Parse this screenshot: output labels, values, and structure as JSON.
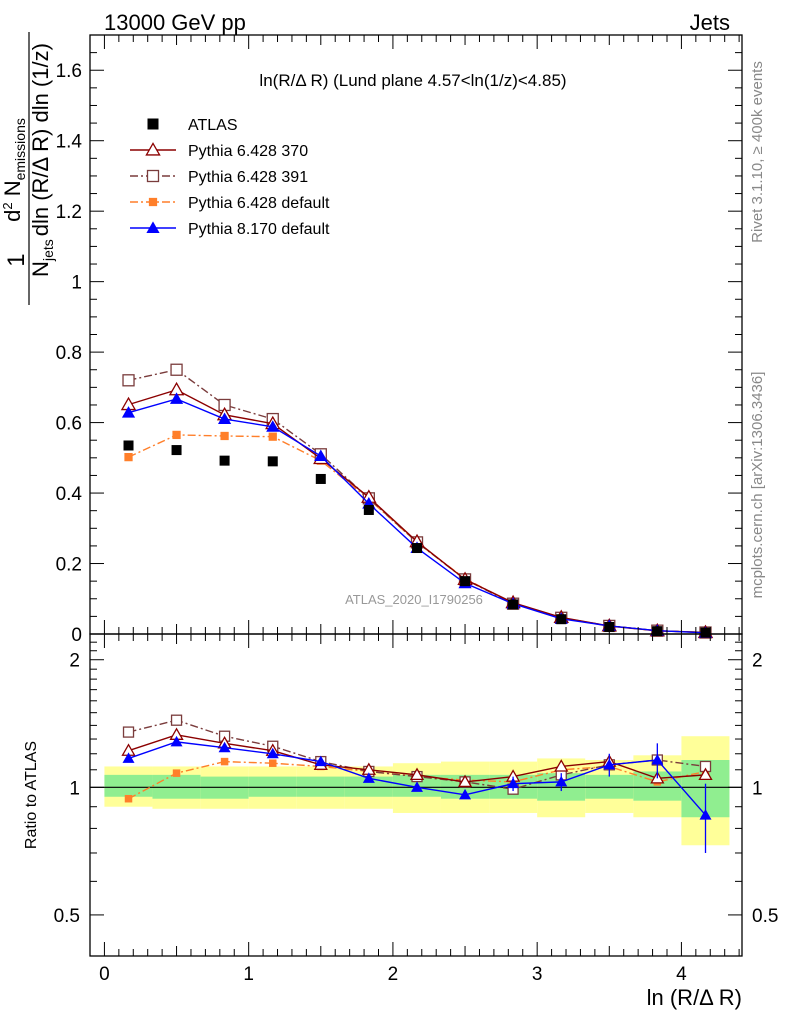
{
  "header": {
    "left": "13000 GeV pp",
    "right": "Jets"
  },
  "side_labels": {
    "upper": "Rivet 3.1.10, ≥ 400k events",
    "lower": "mcplots.cern.ch [arXiv:1306.3436]"
  },
  "analysis_id": "ATLAS_2020_I1790256",
  "chart_data": {
    "type": "scatter",
    "title": "ln(R/Δ R) (Lund plane 4.57<ln(1/z)<4.85)",
    "xlabel": "ln (R/Δ R)",
    "ylabel": "1/N_jets dN_emissions/(dln(R/Δ R) dln(1/z))",
    "ylabel_parts": {
      "numerator": "1",
      "denominator": "N",
      "denominator_sub": "jets",
      "d2": "d",
      "sup2": "2",
      "n": " N",
      "n_sub": "emissions",
      "rest": "dln (R/Δ R) dln (1/z)"
    },
    "ratio_ylabel": "Ratio to ATLAS",
    "xlim": [
      -0.1,
      4.42
    ],
    "ylim": [
      0,
      1.7
    ],
    "ratio_ylim": [
      0.4,
      2.3
    ],
    "x_ticks": [
      "0",
      "1",
      "2",
      "3",
      "4"
    ],
    "y_ticks": [
      "0",
      "0.2",
      "0.4",
      "0.6",
      "0.8",
      "1",
      "1.2",
      "1.4",
      "1.6"
    ],
    "ratio_ticks": [
      "0.5",
      "1",
      "2"
    ],
    "legend_position": "top-left",
    "x": [
      0.167,
      0.5,
      0.833,
      1.167,
      1.5,
      1.833,
      2.167,
      2.5,
      2.833,
      3.167,
      3.5,
      3.833,
      4.167
    ],
    "bin_edges": [
      0.0,
      0.333,
      0.667,
      1.0,
      1.333,
      1.667,
      2.0,
      2.333,
      2.667,
      3.0,
      3.333,
      3.667,
      4.0,
      4.333
    ],
    "series": [
      {
        "name": "ATLAS",
        "color": "#000000",
        "marker": "filled-square",
        "values": [
          0.535,
          0.522,
          0.492,
          0.49,
          0.44,
          0.352,
          0.244,
          0.15,
          0.084,
          0.042,
          0.02,
          0.008,
          0.004
        ],
        "ratio": [
          1,
          1,
          1,
          1,
          1,
          1,
          1,
          1,
          1,
          1,
          1,
          1,
          1
        ]
      },
      {
        "name": "Pythia 6.428 370",
        "color": "#8b0000",
        "marker": "open-triangle",
        "dash": "solid",
        "values": [
          0.651,
          0.693,
          0.622,
          0.597,
          0.498,
          0.388,
          0.262,
          0.155,
          0.089,
          0.047,
          0.023,
          0.009,
          0.0043
        ],
        "ratio": [
          1.22,
          1.33,
          1.27,
          1.22,
          1.13,
          1.1,
          1.07,
          1.03,
          1.06,
          1.12,
          1.15,
          1.05,
          1.07
        ]
      },
      {
        "name": "Pythia 6.428 391",
        "color": "#7a3c3c",
        "marker": "open-square",
        "dash": "dashdot",
        "values": [
          0.72,
          0.75,
          0.65,
          0.61,
          0.51,
          0.385,
          0.26,
          0.155,
          0.086,
          0.046,
          0.023,
          0.0095,
          0.0042
        ],
        "ratio": [
          1.35,
          1.44,
          1.32,
          1.25,
          1.15,
          1.09,
          1.06,
          1.03,
          0.99,
          1.07,
          1.13,
          1.16,
          1.12
        ]
      },
      {
        "name": "Pythia 6.428 default",
        "color": "#ff7f2a",
        "marker": "filled-small-square",
        "dash": "dashdot",
        "values": [
          0.502,
          0.565,
          0.562,
          0.56,
          0.492,
          0.383,
          0.26,
          0.157,
          0.087,
          0.046,
          0.022,
          0.009,
          0.0044
        ],
        "ratio": [
          0.94,
          1.08,
          1.15,
          1.14,
          1.12,
          1.09,
          1.06,
          1.04,
          1.03,
          1.1,
          1.12,
          1.03,
          1.09
        ]
      },
      {
        "name": "Pythia 8.170 default",
        "color": "#0000ff",
        "marker": "filled-triangle",
        "dash": "solid",
        "values": [
          0.628,
          0.667,
          0.61,
          0.588,
          0.505,
          0.37,
          0.244,
          0.144,
          0.086,
          0.043,
          0.023,
          0.0093,
          0.0034
        ],
        "ratio": [
          1.17,
          1.28,
          1.24,
          1.2,
          1.15,
          1.05,
          1.0,
          0.96,
          1.02,
          1.03,
          1.13,
          1.16,
          0.86
        ],
        "ratio_err": [
          0,
          0,
          0,
          0,
          0,
          0,
          0,
          0.02,
          0.04,
          0.05,
          0.07,
          0.11,
          0.16
        ]
      }
    ],
    "uncertainty_bands": {
      "inner_color": "#90ee90",
      "outer_color": "#ffff99",
      "inner_low": [
        0.95,
        0.94,
        0.94,
        0.95,
        0.95,
        0.95,
        0.95,
        0.94,
        0.94,
        0.93,
        0.94,
        0.93,
        0.85
      ],
      "inner_high": [
        1.07,
        1.07,
        1.06,
        1.06,
        1.06,
        1.06,
        1.07,
        1.07,
        1.07,
        1.08,
        1.07,
        1.09,
        1.16
      ],
      "outer_low": [
        0.9,
        0.89,
        0.89,
        0.89,
        0.89,
        0.89,
        0.87,
        0.87,
        0.87,
        0.85,
        0.87,
        0.85,
        0.73
      ],
      "outer_high": [
        1.12,
        1.12,
        1.12,
        1.12,
        1.12,
        1.12,
        1.14,
        1.15,
        1.15,
        1.17,
        1.16,
        1.19,
        1.32
      ]
    }
  }
}
